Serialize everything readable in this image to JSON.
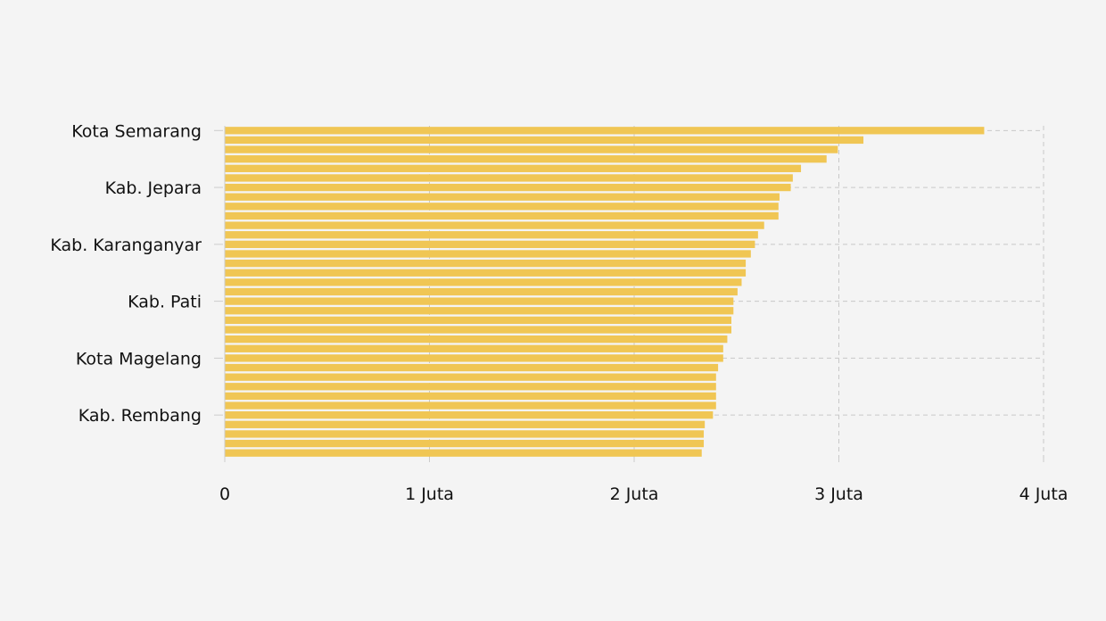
{
  "chart_data": {
    "type": "bar",
    "orientation": "horizontal",
    "title": "",
    "xlabel": "",
    "ylabel": "",
    "xlim": [
      0,
      4000000
    ],
    "x_ticks": [
      {
        "value": 0,
        "label": "0"
      },
      {
        "value": 1000000,
        "label": "1 Juta"
      },
      {
        "value": 2000000,
        "label": "2 Juta"
      },
      {
        "value": 3000000,
        "label": "3 Juta"
      },
      {
        "value": 4000000,
        "label": "4 Juta"
      }
    ],
    "y_tick_labels": [
      {
        "index": 0,
        "label": "Kota Semarang"
      },
      {
        "index": 6,
        "label": "Kab. Jepara"
      },
      {
        "index": 12,
        "label": "Kab. Karanganyar"
      },
      {
        "index": 18,
        "label": "Kab. Pati"
      },
      {
        "index": 24,
        "label": "Kota Magelang"
      },
      {
        "index": 30,
        "label": "Kab. Rembang"
      }
    ],
    "values": [
      3710000,
      3120000,
      2995000,
      2940000,
      2815000,
      2775000,
      2765000,
      2710000,
      2705000,
      2705000,
      2635000,
      2605000,
      2590000,
      2570000,
      2545000,
      2545000,
      2525000,
      2505000,
      2485000,
      2485000,
      2475000,
      2475000,
      2455000,
      2435000,
      2435000,
      2410000,
      2400000,
      2400000,
      2400000,
      2400000,
      2385000,
      2345000,
      2340000,
      2340000,
      2330000
    ],
    "grid": true,
    "bar_color": "#f0c654"
  }
}
